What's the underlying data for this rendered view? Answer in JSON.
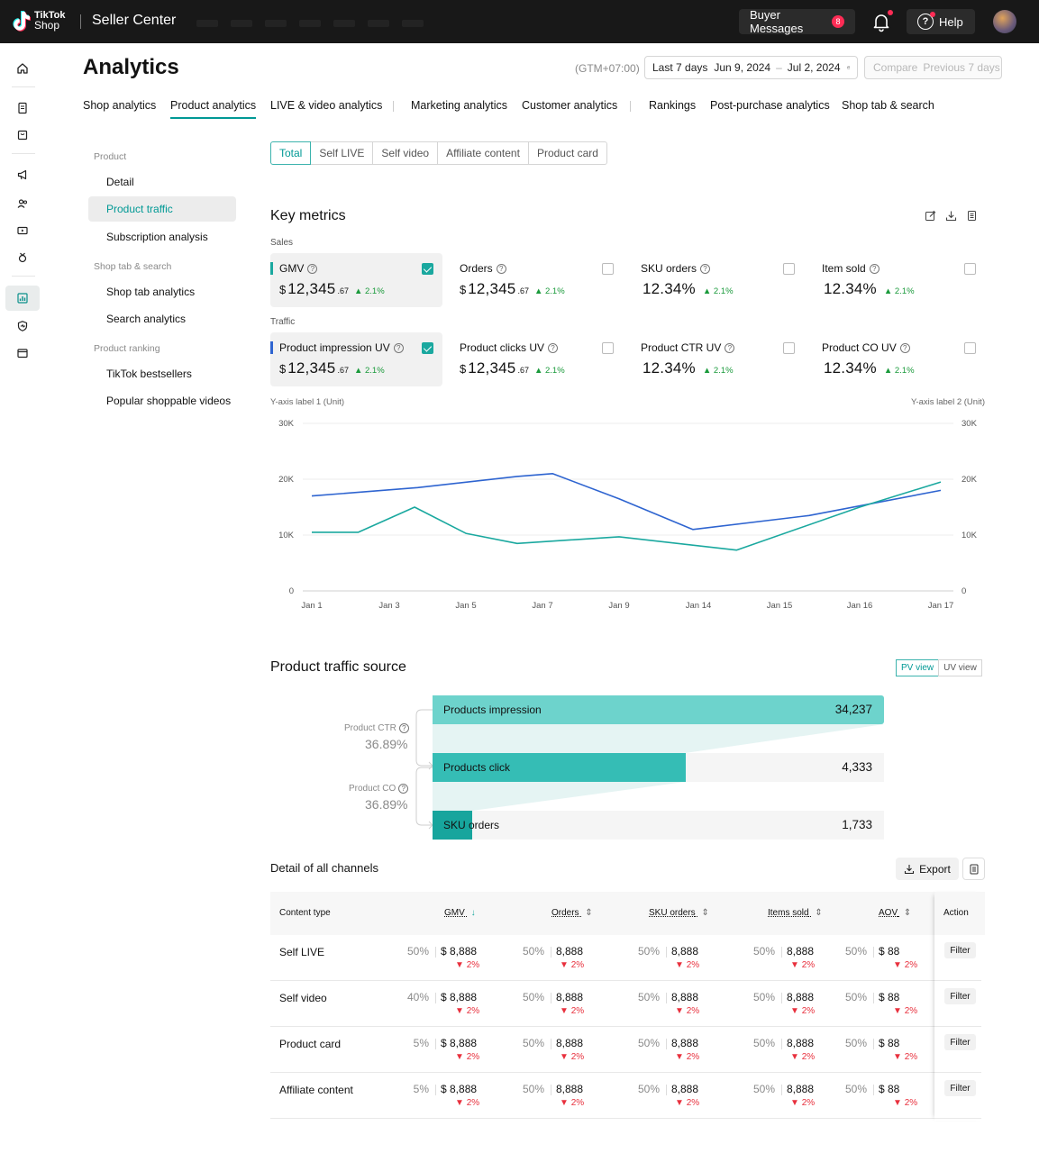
{
  "topbar": {
    "logo_line1": "TikTok",
    "logo_line2": "Shop",
    "app_title": "Seller Center",
    "buyer_messages_label": "Buyer Messages",
    "buyer_messages_count": "8",
    "help_label": "Help"
  },
  "header": {
    "title": "Analytics",
    "timezone": "(GTM+07:00)",
    "range_preset": "Last 7 days",
    "start_date": "Jun 9, 2024",
    "end_date": "Jul 2, 2024",
    "compare_label": "Compare",
    "compare_period": "Previous 7 days"
  },
  "tabs": [
    {
      "label": "Shop analytics"
    },
    {
      "label": "Product analytics"
    },
    {
      "label": "LIVE & video analytics"
    },
    {
      "label": "Marketing analytics"
    },
    {
      "label": "Customer analytics"
    },
    {
      "label": "Rankings"
    },
    {
      "label": "Post-purchase analytics"
    },
    {
      "label": "Shop tab &  search"
    }
  ],
  "sidebar": {
    "group_product": "Product",
    "item_detail": "Detail",
    "item_product_traffic": "Product traffic",
    "item_subscription": "Subscription analysis",
    "group_shop_tab": "Shop tab & search",
    "item_shop_tab_analytics": "Shop tab analytics",
    "item_search_analytics": "Search analytics",
    "group_ranking": "Product ranking",
    "item_bestsellers": "TikTok bestsellers",
    "item_popular_videos": "Popular shoppable videos"
  },
  "segments": [
    "Total",
    "Self LIVE",
    "Self video",
    "Affiliate content",
    "Product card"
  ],
  "key_metrics": {
    "title": "Key metrics",
    "sales_label": "Sales",
    "traffic_label": "Traffic",
    "cards": [
      {
        "name": "GMV",
        "currency": "$",
        "value": "12,345",
        "decimal": ".67",
        "change": "2.1%",
        "checked": true
      },
      {
        "name": "Orders",
        "currency": "$",
        "value": "12,345",
        "decimal": ".67",
        "change": "2.1%",
        "checked": false
      },
      {
        "name": "SKU orders",
        "currency": "",
        "value": "12.34%",
        "decimal": "",
        "change": "2.1%",
        "checked": false
      },
      {
        "name": "Item sold",
        "currency": "",
        "value": "12.34%",
        "decimal": "",
        "change": "2.1%",
        "checked": false
      },
      {
        "name": "Product impression UV",
        "currency": "$",
        "value": "12,345",
        "decimal": ".67",
        "change": "2.1%",
        "checked": true
      },
      {
        "name": "Product clicks UV",
        "currency": "$",
        "value": "12,345",
        "decimal": ".67",
        "change": "2.1%",
        "checked": false
      },
      {
        "name": "Product CTR UV",
        "currency": "",
        "value": "12.34%",
        "decimal": "",
        "change": "2.1%",
        "checked": false
      },
      {
        "name": "Product CO UV",
        "currency": "",
        "value": "12.34%",
        "decimal": "",
        "change": "2.1%",
        "checked": false
      }
    ]
  },
  "chart_data": {
    "type": "line",
    "ylabel": "Y-axis label 1 (Unit)",
    "ylabel2": "Y-axis label 2 (Unit)",
    "categories": [
      "Jan 1",
      "Jan 3",
      "Jan 5",
      "Jan 7",
      "Jan 9",
      "Jan 14",
      "Jan 15",
      "Jan 16",
      "Jan 17"
    ],
    "y_ticks": [
      "0",
      "10K",
      "20K",
      "30K"
    ],
    "ylim": [
      0,
      30000
    ],
    "grid": true,
    "series": [
      {
        "color": "#2e64d0",
        "points": [
          [
            0,
            17000
          ],
          [
            1.37,
            18500
          ],
          [
            2.67,
            20500
          ],
          [
            3.13,
            21000
          ],
          [
            4.0,
            16500
          ],
          [
            4.93,
            11000
          ],
          [
            6.37,
            13500
          ],
          [
            8.0,
            18000
          ]
        ]
      },
      {
        "color": "#1aa89f",
        "points": [
          [
            0,
            10500
          ],
          [
            0.6,
            10500
          ],
          [
            1.33,
            15000
          ],
          [
            2.0,
            10300
          ],
          [
            2.67,
            8500
          ],
          [
            4.0,
            9700
          ],
          [
            5.47,
            7300
          ],
          [
            7.0,
            15000
          ],
          [
            8.0,
            19500
          ]
        ]
      }
    ]
  },
  "traffic_source": {
    "title": "Product traffic source",
    "pv_view": "PV view",
    "uv_view": "UV view",
    "ctr_label": "Product CTR",
    "ctr_value": "36.89%",
    "co_label": "Product CO",
    "co_value": "36.89%",
    "funnel": [
      {
        "label": "Products impression",
        "value": "34,237",
        "fill": 1.0,
        "color": "#6dd3cc"
      },
      {
        "label": "Products click",
        "value": "4,333",
        "fill": 0.56,
        "color": "#35bdb5"
      },
      {
        "label": "SKU orders",
        "value": "1,733",
        "fill": 0.088,
        "color": "#17a59d"
      }
    ]
  },
  "channels": {
    "title": "Detail of all channels",
    "export_label": "Export",
    "headers": {
      "content_type": "Content type",
      "gmv": "GMV",
      "orders": "Orders",
      "sku_orders": "SKU orders",
      "items_sold": "Items sold",
      "aov": "AOV",
      "action": "Action"
    },
    "filter_label": "Filter",
    "rows": [
      {
        "name": "Self LIVE",
        "cells": [
          [
            "50%",
            "$ 8,888",
            "2%"
          ],
          [
            "50%",
            "8,888",
            "2%"
          ],
          [
            "50%",
            "8,888",
            "2%"
          ],
          [
            "50%",
            "8,888",
            "2%"
          ],
          [
            "50%",
            "$ 88",
            "2%"
          ]
        ]
      },
      {
        "name": "Self video",
        "cells": [
          [
            "40%",
            "$ 8,888",
            "2%"
          ],
          [
            "50%",
            "8,888",
            "2%"
          ],
          [
            "50%",
            "8,888",
            "2%"
          ],
          [
            "50%",
            "8,888",
            "2%"
          ],
          [
            "50%",
            "$ 88",
            "2%"
          ]
        ]
      },
      {
        "name": "Product card",
        "cells": [
          [
            "5%",
            "$ 8,888",
            "2%"
          ],
          [
            "50%",
            "8,888",
            "2%"
          ],
          [
            "50%",
            "8,888",
            "2%"
          ],
          [
            "50%",
            "8,888",
            "2%"
          ],
          [
            "50%",
            "$ 88",
            "2%"
          ]
        ]
      },
      {
        "name": "Affiliate content",
        "cells": [
          [
            "5%",
            "$ 8,888",
            "2%"
          ],
          [
            "50%",
            "8,888",
            "2%"
          ],
          [
            "50%",
            "8,888",
            "2%"
          ],
          [
            "50%",
            "8,888",
            "2%"
          ],
          [
            "50%",
            "$ 88",
            "2%"
          ]
        ]
      }
    ]
  }
}
